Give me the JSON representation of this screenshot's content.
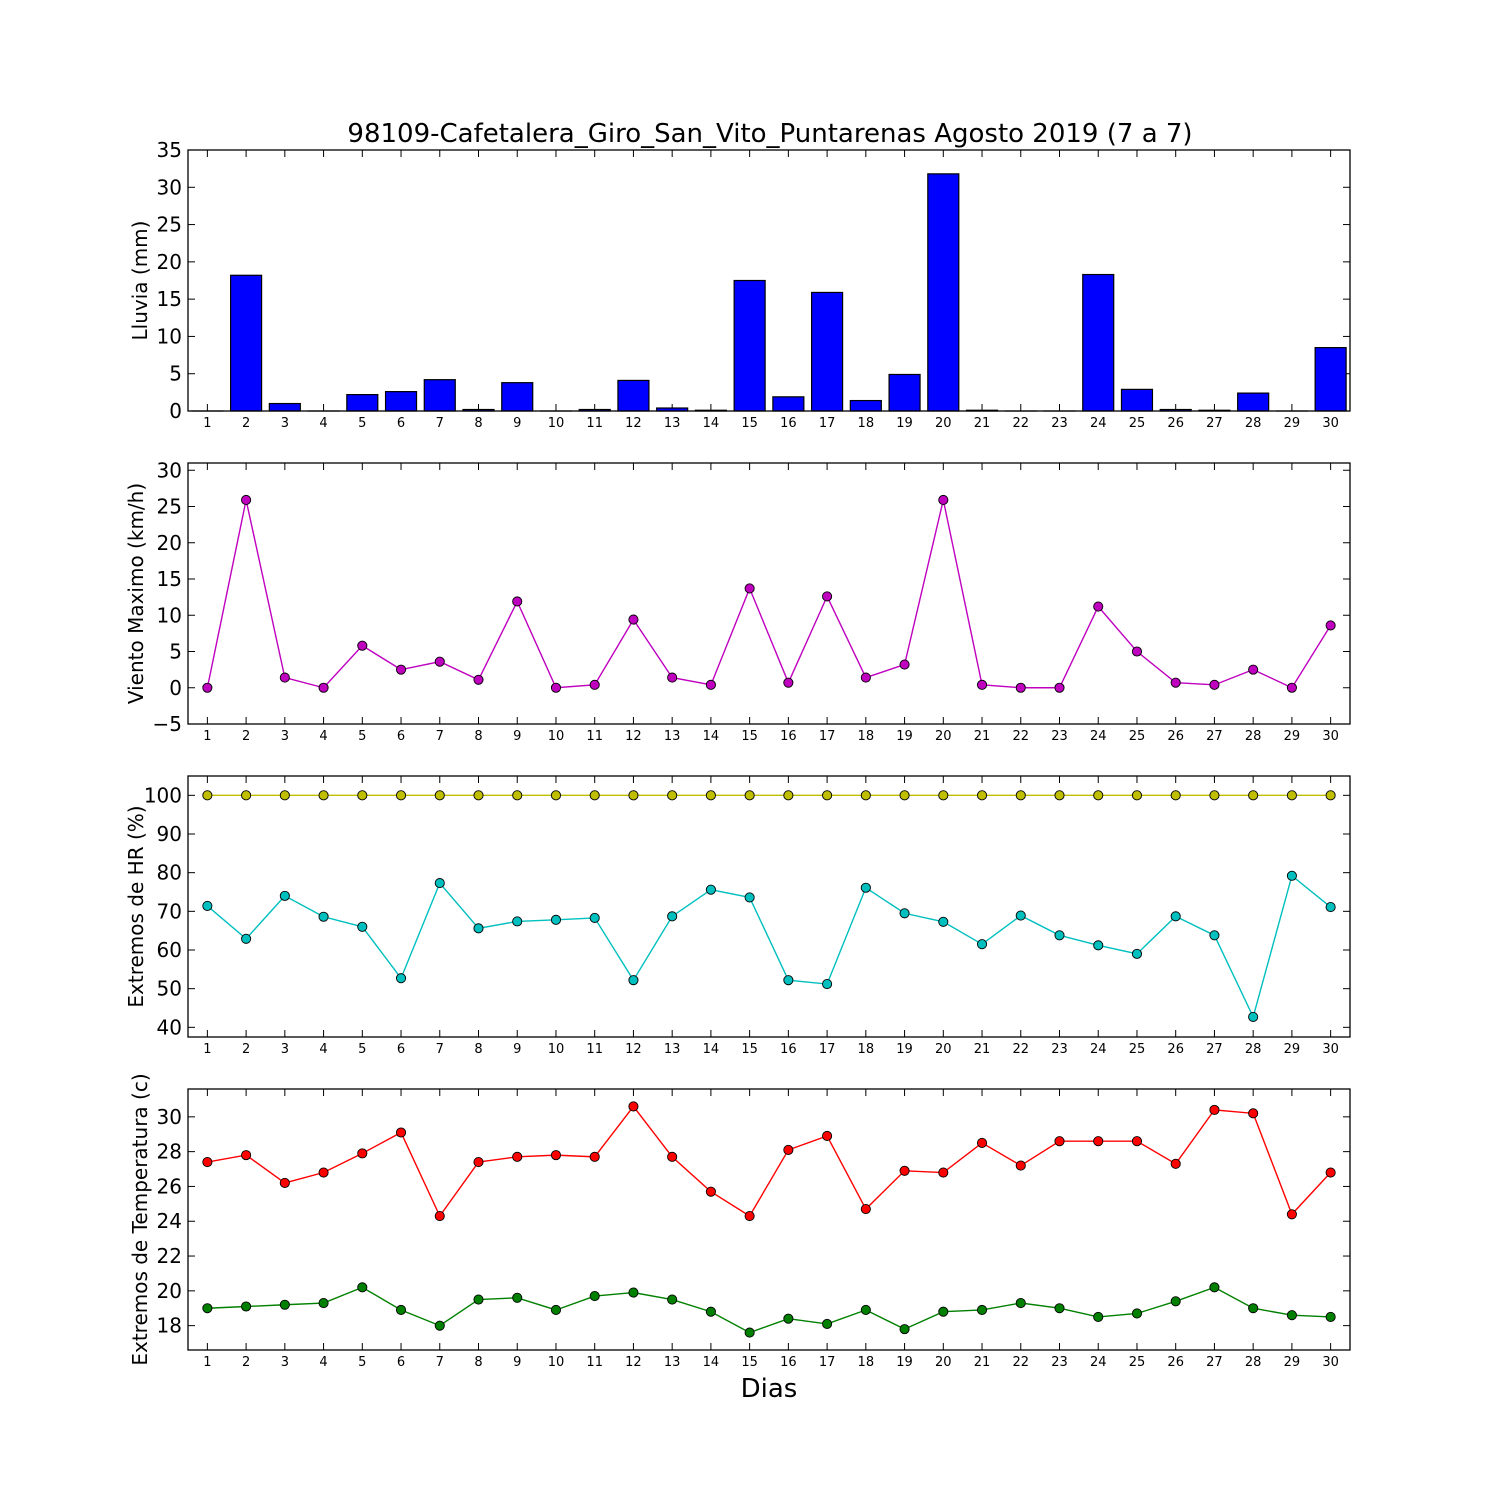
{
  "figure": {
    "title": "98109-Cafetalera_Giro_San_Vito_Puntarenas Agosto 2019  (7 a 7)",
    "xlabel": "Dias"
  },
  "chart_data": [
    {
      "type": "bar",
      "ylabel": "Lluvia (mm)",
      "ylim": [
        0,
        35
      ],
      "yticks": [
        0,
        5,
        10,
        15,
        20,
        25,
        30,
        35
      ],
      "xlim": [
        0.5,
        30.5
      ],
      "categories": [
        1,
        2,
        3,
        4,
        5,
        6,
        7,
        8,
        9,
        10,
        11,
        12,
        13,
        14,
        15,
        16,
        17,
        18,
        19,
        20,
        21,
        22,
        23,
        24,
        25,
        26,
        27,
        28,
        29,
        30
      ],
      "series": [
        {
          "color": "#0000ff",
          "values": [
            0,
            18.2,
            1.0,
            0,
            2.2,
            2.6,
            4.2,
            0.2,
            3.8,
            0,
            0.2,
            4.1,
            0.4,
            0.1,
            17.5,
            1.9,
            15.9,
            1.4,
            4.9,
            31.8,
            0.1,
            0,
            0,
            18.3,
            2.9,
            0.2,
            0.1,
            2.4,
            0,
            8.5
          ]
        }
      ]
    },
    {
      "type": "line",
      "ylabel": "Viento Maximo (km/h)",
      "ylim": [
        -5,
        31
      ],
      "yticks": [
        -5,
        0,
        5,
        10,
        15,
        20,
        25,
        30
      ],
      "xlim": [
        0.5,
        30.5
      ],
      "x": [
        1,
        2,
        3,
        4,
        5,
        6,
        7,
        8,
        9,
        10,
        11,
        12,
        13,
        14,
        15,
        16,
        17,
        18,
        19,
        20,
        21,
        22,
        23,
        24,
        25,
        26,
        27,
        28,
        29,
        30
      ],
      "series": [
        {
          "color": "#bf00bf",
          "values": [
            0,
            25.9,
            1.4,
            0,
            5.8,
            2.5,
            3.6,
            1.1,
            11.9,
            0,
            0.4,
            9.4,
            1.4,
            0.4,
            13.7,
            0.7,
            12.6,
            1.4,
            3.2,
            25.9,
            0.4,
            0,
            0,
            11.2,
            5.0,
            0.7,
            0.4,
            2.5,
            0,
            8.6
          ]
        }
      ]
    },
    {
      "type": "line",
      "ylabel": "Extremos de HR (%)",
      "ylim": [
        37.5,
        105
      ],
      "yticks": [
        40,
        50,
        60,
        70,
        80,
        90,
        100
      ],
      "xlim": [
        0.5,
        30.5
      ],
      "x": [
        1,
        2,
        3,
        4,
        5,
        6,
        7,
        8,
        9,
        10,
        11,
        12,
        13,
        14,
        15,
        16,
        17,
        18,
        19,
        20,
        21,
        22,
        23,
        24,
        25,
        26,
        27,
        28,
        29,
        30
      ],
      "series": [
        {
          "color": "#bfbf00",
          "values": [
            100,
            100,
            100,
            100,
            100,
            100,
            100,
            100,
            100,
            100,
            100,
            100,
            100,
            100,
            100,
            100,
            100,
            100,
            100,
            100,
            100,
            100,
            100,
            100,
            100,
            100,
            100,
            100,
            100,
            100
          ]
        },
        {
          "color": "#00bfbf",
          "values": [
            71.4,
            62.9,
            74.0,
            68.6,
            66.0,
            52.7,
            77.3,
            65.6,
            67.4,
            67.8,
            68.3,
            52.2,
            68.7,
            75.6,
            73.6,
            52.2,
            51.2,
            76.1,
            69.5,
            67.3,
            61.5,
            68.9,
            63.8,
            61.2,
            59.0,
            68.7,
            63.8,
            42.7,
            79.2,
            71.1
          ]
        }
      ]
    },
    {
      "type": "line",
      "ylabel": "Extremos de Temperatura (c)",
      "ylim": [
        16.6,
        31.6
      ],
      "yticks": [
        18,
        20,
        22,
        24,
        26,
        28,
        30
      ],
      "xlim": [
        0.5,
        30.5
      ],
      "x": [
        1,
        2,
        3,
        4,
        5,
        6,
        7,
        8,
        9,
        10,
        11,
        12,
        13,
        14,
        15,
        16,
        17,
        18,
        19,
        20,
        21,
        22,
        23,
        24,
        25,
        26,
        27,
        28,
        29,
        30
      ],
      "series": [
        {
          "color": "#ff0000",
          "values": [
            27.4,
            27.8,
            26.2,
            26.8,
            27.9,
            29.1,
            24.3,
            27.4,
            27.7,
            27.8,
            27.7,
            30.6,
            27.7,
            25.7,
            24.3,
            28.1,
            28.9,
            24.7,
            26.9,
            26.8,
            28.5,
            27.2,
            28.6,
            28.6,
            28.6,
            27.3,
            30.4,
            30.2,
            24.4,
            26.8
          ]
        },
        {
          "color": "#008000",
          "values": [
            19.0,
            19.1,
            19.2,
            19.3,
            20.2,
            18.9,
            18.0,
            19.5,
            19.6,
            18.9,
            19.7,
            19.9,
            19.5,
            18.8,
            17.6,
            18.4,
            18.1,
            18.9,
            17.8,
            18.8,
            18.9,
            19.3,
            19.0,
            18.5,
            18.7,
            19.4,
            20.2,
            19.0,
            18.6,
            18.5
          ]
        }
      ]
    }
  ]
}
